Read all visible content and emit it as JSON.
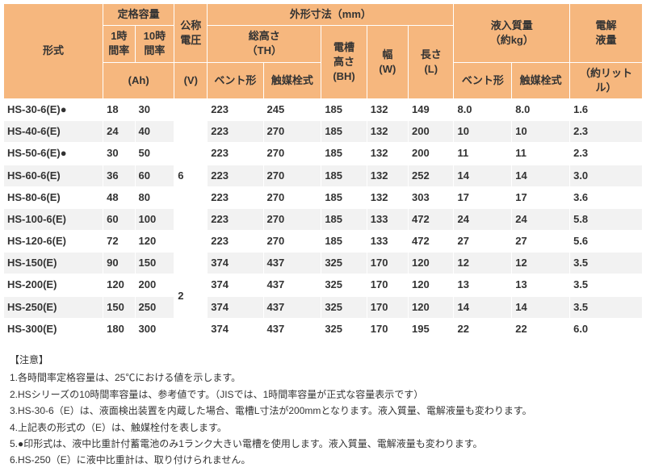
{
  "colors": {
    "header_bg": "#f6b77e",
    "row_even_bg": "#f2f2f2",
    "row_odd_bg": "#ffffff",
    "border": "#ffffff",
    "text": "#333333"
  },
  "header": {
    "model": "形式",
    "rated_capacity": "定格容量",
    "rate_1h": "1時間率",
    "rate_10h": "10時間率",
    "ah": "(Ah)",
    "nominal_voltage": "公称電圧",
    "voltage_unit": "(V)",
    "dimensions": "外形寸法（mm）",
    "total_height": "総高さ",
    "th": "（TH）",
    "vent": "ベント形",
    "catalyst": "触媒栓式",
    "tank_height": "電槽高さ",
    "bh": "(BH)",
    "width": "幅",
    "w": "(W)",
    "length": "長さ",
    "l": "(L)",
    "filled_mass": "液入質量",
    "mass_unit": "（約kg）",
    "electrolyte_volume": "電解液量",
    "electrolyte_unit": "（約リットル）"
  },
  "rows": [
    {
      "model": "HS-30-6(E)●",
      "r1": "18",
      "r10": "30",
      "v": "",
      "th_v": "223",
      "th_c": "245",
      "bh": "185",
      "w": "132",
      "l": "149",
      "m_v": "8.0",
      "m_c": "8.0",
      "el": "1.6"
    },
    {
      "model": "HS-40-6(E)",
      "r1": "24",
      "r10": "40",
      "v": "",
      "th_v": "223",
      "th_c": "270",
      "bh": "185",
      "w": "132",
      "l": "200",
      "m_v": "10",
      "m_c": "10",
      "el": "2.3"
    },
    {
      "model": "HS-50-6(E)●",
      "r1": "30",
      "r10": "50",
      "v": "",
      "th_v": "223",
      "th_c": "270",
      "bh": "185",
      "w": "132",
      "l": "200",
      "m_v": "11",
      "m_c": "11",
      "el": "2.3"
    },
    {
      "model": "HS-60-6(E)",
      "r1": "36",
      "r10": "60",
      "v": "6",
      "th_v": "223",
      "th_c": "270",
      "bh": "185",
      "w": "132",
      "l": "252",
      "m_v": "14",
      "m_c": "14",
      "el": "3.0"
    },
    {
      "model": "HS-80-6(E)",
      "r1": "48",
      "r10": "80",
      "v": "",
      "th_v": "223",
      "th_c": "270",
      "bh": "185",
      "w": "132",
      "l": "303",
      "m_v": "17",
      "m_c": "17",
      "el": "3.6"
    },
    {
      "model": "HS-100-6(E)",
      "r1": "60",
      "r10": "100",
      "v": "",
      "th_v": "223",
      "th_c": "270",
      "bh": "185",
      "w": "133",
      "l": "472",
      "m_v": "24",
      "m_c": "24",
      "el": "5.8"
    },
    {
      "model": "HS-120-6(E)",
      "r1": "72",
      "r10": "120",
      "v": "",
      "th_v": "223",
      "th_c": "270",
      "bh": "185",
      "w": "133",
      "l": "472",
      "m_v": "27",
      "m_c": "27",
      "el": "5.6"
    },
    {
      "model": "HS-150(E)",
      "r1": "90",
      "r10": "150",
      "v": "",
      "th_v": "374",
      "th_c": "437",
      "bh": "325",
      "w": "170",
      "l": "120",
      "m_v": "12",
      "m_c": "12",
      "el": "3.5"
    },
    {
      "model": "HS-200(E)",
      "r1": "120",
      "r10": "200",
      "v": "2",
      "th_v": "374",
      "th_c": "437",
      "bh": "325",
      "w": "170",
      "l": "120",
      "m_v": "13",
      "m_c": "13",
      "el": "3.5"
    },
    {
      "model": "HS-250(E)",
      "r1": "150",
      "r10": "250",
      "v": "",
      "th_v": "374",
      "th_c": "437",
      "bh": "325",
      "w": "170",
      "l": "120",
      "m_v": "14",
      "m_c": "14",
      "el": "3.5"
    },
    {
      "model": "HS-300(E)",
      "r1": "180",
      "r10": "300",
      "v": "",
      "th_v": "374",
      "th_c": "437",
      "bh": "325",
      "w": "170",
      "l": "195",
      "m_v": "22",
      "m_c": "22",
      "el": "6.0"
    }
  ],
  "voltage_spans": [
    {
      "start": 0,
      "span": 7,
      "value": "6"
    },
    {
      "start": 7,
      "span": 4,
      "value": "2"
    }
  ],
  "notes": {
    "title": "【注意】",
    "items": [
      "1.各時間率定格容量は、25℃における値を示します。",
      "2.HSシリーズの10時間率容量は、参考値です。（JISでは、1時間率容量が正式な容量表示です）",
      "3.HS-30-6（E）は、液面検出装置を内蔵した場合、電槽L寸法が200mmとなります。液入質量、電解液量も変わります。",
      "4.上記表の形式の（E）は、触媒栓付を表します。",
      "5.●印形式は、液中比重計付蓄電池のみ1ランク大きい電槽を使用します。液入質量、電解液量も変わります。",
      "6.HS-250（E）に液中比重計は、取り付けられません。"
    ]
  },
  "col_widths": [
    "96",
    "30",
    "38",
    "32",
    "54",
    "56",
    "44",
    "40",
    "44",
    "56",
    "56",
    "70"
  ]
}
